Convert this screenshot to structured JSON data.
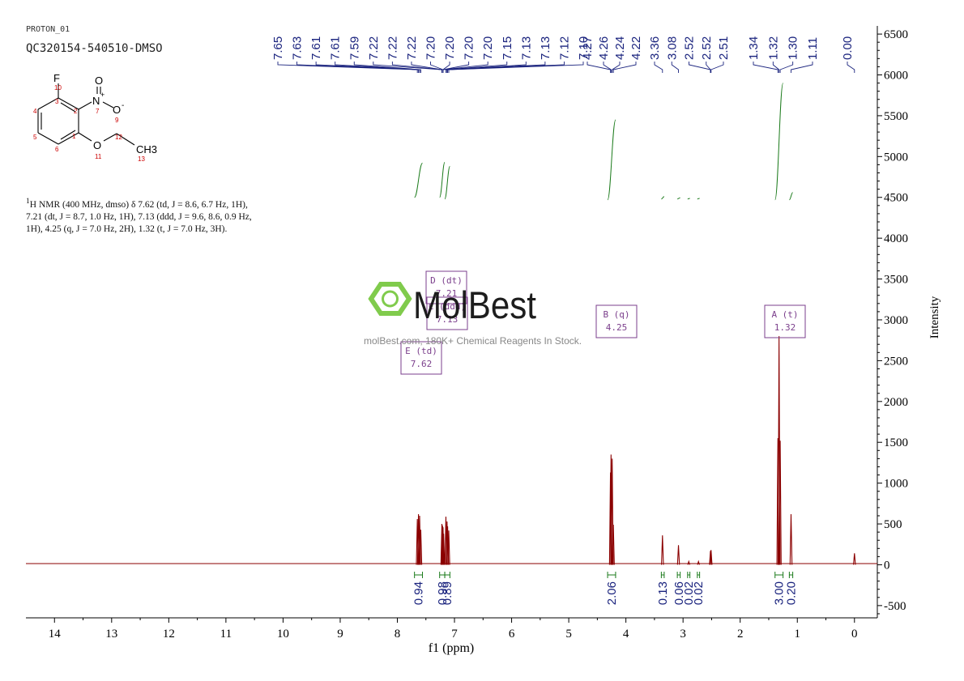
{
  "header": {
    "title": "PROTON_01",
    "sample": "QC320154-540510-DMSO"
  },
  "structure": {
    "atoms": [
      {
        "label": "F",
        "num": "10"
      },
      {
        "label": "N",
        "num": "7",
        "charge": "+"
      },
      {
        "label": "O",
        "num": "8"
      },
      {
        "label": "O",
        "num": "9",
        "charge": "-"
      },
      {
        "label": "O",
        "num": "11"
      },
      {
        "label": "CH3",
        "num": "13"
      }
    ],
    "ring_numbers": [
      "1",
      "2",
      "3",
      "4",
      "5",
      "6"
    ],
    "chain_number": "12"
  },
  "description": {
    "nucleus_sup": "1",
    "lines": [
      "H NMR (400 MHz, dmso) δ 7.62 (td, J = 8.6, 6.7 Hz, 1H),",
      "7.21 (dt, J = 8.7, 1.0 Hz, 1H), 7.13 (ddd, J = 9.6, 8.6, 0.9 Hz,",
      "1H), 4.25 (q, J = 7.0 Hz, 2H), 1.32 (t, J = 7.0 Hz, 3H)."
    ]
  },
  "watermark": {
    "brand": "MolBest",
    "tagline": "molBest.com, 180K+ Chemical Reagents In Stock."
  },
  "colors": {
    "spectrum": "#8b0000",
    "integral": "#1a7a1a",
    "peak_label": "#1a237e",
    "multiplet_box": "#7b3f8c",
    "logo": "#7ac943"
  },
  "chart_data": {
    "type": "line",
    "title": "",
    "xlabel": "f1 (ppm)",
    "ylabel": "Intensity",
    "xlim": [
      14.5,
      -0.4
    ],
    "ylim": [
      -650,
      6600
    ],
    "x_ticks": [
      "14",
      "13",
      "12",
      "11",
      "10",
      "9",
      "8",
      "7",
      "6",
      "5",
      "4",
      "3",
      "2",
      "1",
      "0"
    ],
    "y_ticks": [
      "6500",
      "6000",
      "5500",
      "5000",
      "4500",
      "4000",
      "3500",
      "3000",
      "2500",
      "2000",
      "1500",
      "1000",
      "500",
      "0",
      "-500"
    ],
    "peaks": [
      {
        "ppm": 7.65,
        "h": 560
      },
      {
        "ppm": 7.63,
        "h": 620
      },
      {
        "ppm": 7.61,
        "h": 600
      },
      {
        "ppm": 7.59,
        "h": 430
      },
      {
        "ppm": 7.22,
        "h": 500
      },
      {
        "ppm": 7.21,
        "h": 480
      },
      {
        "ppm": 7.2,
        "h": 460
      },
      {
        "ppm": 7.19,
        "h": 380
      },
      {
        "ppm": 7.15,
        "h": 590
      },
      {
        "ppm": 7.13,
        "h": 530
      },
      {
        "ppm": 7.12,
        "h": 470
      },
      {
        "ppm": 7.1,
        "h": 420
      },
      {
        "ppm": 4.27,
        "h": 1130
      },
      {
        "ppm": 4.26,
        "h": 1350
      },
      {
        "ppm": 4.24,
        "h": 1300
      },
      {
        "ppm": 4.22,
        "h": 490
      },
      {
        "ppm": 3.36,
        "h": 360
      },
      {
        "ppm": 3.08,
        "h": 240
      },
      {
        "ppm": 2.9,
        "h": 40
      },
      {
        "ppm": 2.73,
        "h": 40
      },
      {
        "ppm": 2.52,
        "h": 170
      },
      {
        "ppm": 2.51,
        "h": 180
      },
      {
        "ppm": 1.34,
        "h": 1550
      },
      {
        "ppm": 1.32,
        "h": 2800
      },
      {
        "ppm": 1.3,
        "h": 1520
      },
      {
        "ppm": 1.11,
        "h": 620
      },
      {
        "ppm": 0.0,
        "h": 140
      }
    ],
    "peak_labels": [
      "7.65",
      "7.63",
      "7.61",
      "7.61",
      "7.59",
      "7.22",
      "7.22",
      "7.22",
      "7.20",
      "7.20",
      "7.20",
      "7.20",
      "7.15",
      "7.13",
      "7.13",
      "7.12",
      "7.10",
      "4.27",
      "4.26",
      "4.24",
      "4.22",
      "3.36",
      "3.08",
      "2.52",
      "2.52",
      "2.51",
      "1.34",
      "1.32",
      "1.30",
      "1.11",
      "0.00"
    ],
    "peak_label_ppm": [
      7.65,
      7.63,
      7.61,
      7.61,
      7.59,
      7.22,
      7.22,
      7.22,
      7.2,
      7.2,
      7.2,
      7.2,
      7.15,
      7.13,
      7.13,
      7.12,
      7.1,
      4.27,
      4.26,
      4.24,
      4.22,
      3.36,
      3.08,
      2.52,
      2.52,
      2.51,
      1.34,
      1.32,
      1.3,
      1.11,
      0.0
    ],
    "integrals": [
      {
        "from": 7.7,
        "to": 7.56,
        "value": "0.94",
        "curve": [
          4500,
          4920
        ]
      },
      {
        "from": 7.26,
        "to": 7.17,
        "value": "0.98",
        "curve": [
          4500,
          4930
        ]
      },
      {
        "from": 7.17,
        "to": 7.08,
        "value": "0.89",
        "curve": [
          4480,
          4880
        ]
      },
      {
        "from": 4.32,
        "to": 4.18,
        "value": "2.06",
        "curve": [
          4470,
          5450
        ]
      },
      {
        "from": 3.38,
        "to": 3.33,
        "value": "0.13",
        "curve": [
          4480,
          4510
        ]
      },
      {
        "from": 3.1,
        "to": 3.05,
        "value": "0.06",
        "curve": [
          4480,
          4495
        ]
      },
      {
        "from": 2.92,
        "to": 2.88,
        "value": "0.02",
        "curve": [
          4480,
          4488
        ]
      },
      {
        "from": 2.75,
        "to": 2.71,
        "value": "0.02",
        "curve": [
          4480,
          4488
        ]
      },
      {
        "from": 1.39,
        "to": 1.25,
        "value": "3.00",
        "curve": [
          4470,
          5900
        ]
      },
      {
        "from": 1.14,
        "to": 1.08,
        "value": "0.20",
        "curve": [
          4470,
          4560
        ]
      }
    ],
    "multiplets": [
      {
        "id": "D",
        "type": "dt",
        "shift": "7.21",
        "ppm": 7.21
      },
      {
        "id": "C",
        "type": "ddd",
        "shift": "7.13",
        "ppm": 7.13
      },
      {
        "id": "E",
        "type": "td",
        "shift": "7.62",
        "ppm": 7.62
      },
      {
        "id": "B",
        "type": "q",
        "shift": "4.25",
        "ppm": 4.25
      },
      {
        "id": "A",
        "type": "t",
        "shift": "1.32",
        "ppm": 1.32
      }
    ]
  }
}
